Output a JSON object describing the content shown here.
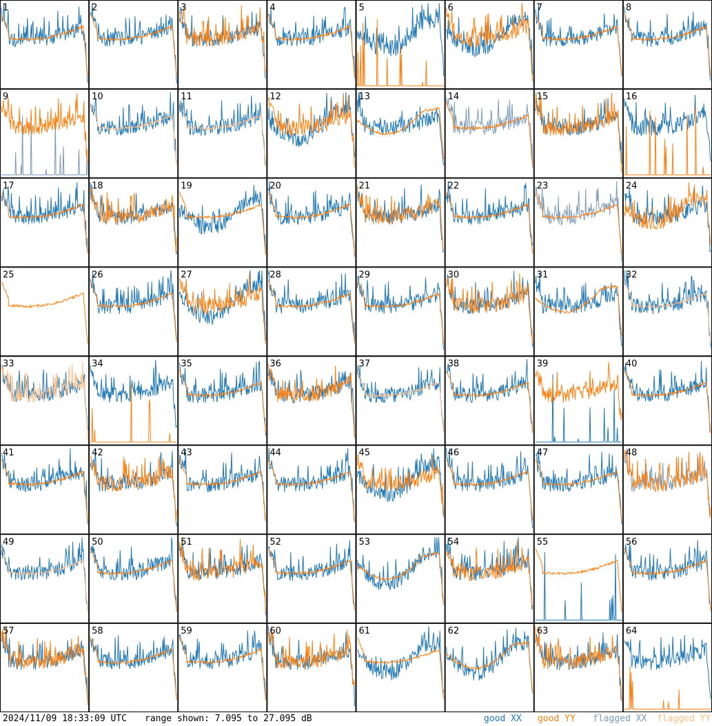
{
  "chart_data": {
    "type": "line",
    "panel_count": 64,
    "panels": [
      "1",
      "2",
      "3",
      "4",
      "5",
      "6",
      "7",
      "8",
      "9",
      "10",
      "11",
      "12",
      "13",
      "14",
      "15",
      "16",
      "17",
      "18",
      "19",
      "20",
      "21",
      "22",
      "23",
      "24",
      "25",
      "26",
      "27",
      "28",
      "29",
      "30",
      "31",
      "32",
      "33",
      "34",
      "35",
      "36",
      "37",
      "38",
      "39",
      "40",
      "41",
      "42",
      "43",
      "44",
      "45",
      "46",
      "47",
      "48",
      "49",
      "50",
      "51",
      "52",
      "53",
      "54",
      "55",
      "56",
      "57",
      "58",
      "59",
      "60",
      "61",
      "62",
      "63",
      "64"
    ],
    "series": [
      {
        "name": "good XX",
        "color": "#1f77b4"
      },
      {
        "name": "good YY",
        "color": "#ff7f0e"
      },
      {
        "name": "flagged XX",
        "color": "#7a9ab8"
      },
      {
        "name": "flagged YY",
        "color": "#ffbf8a"
      }
    ],
    "ylim": [
      7.095,
      27.095
    ],
    "y_unit": "dB",
    "flags": {
      "xx_flagged": [
        9,
        14,
        23,
        48
      ],
      "yy_flagged": [
        10,
        11,
        32,
        33,
        37,
        49
      ],
      "xx_spiky_low": [
        9,
        39,
        55
      ],
      "yy_spiky_low": [
        5,
        16,
        34,
        64
      ],
      "yy_missing": [
        16,
        64
      ],
      "xx_missing": [
        25
      ],
      "deep_dip": [
        5,
        6,
        12,
        19,
        27,
        45,
        53,
        61,
        62
      ],
      "yy_deep_dip": [
        31,
        53,
        62,
        24,
        13
      ]
    },
    "grid": false,
    "legend_position": "bottom-right"
  },
  "footer": {
    "timestamp": "2024/11/09 18:33:09 UTC",
    "range": "range shown: 7.095 to 27.095 dB",
    "legend": [
      "good XX",
      "good YY",
      "flagged XX",
      "flagged YY"
    ]
  },
  "colors": {
    "good_xx": "#1f77b4",
    "good_yy": "#ff7f0e",
    "flagged_xx": "#7a9ab8",
    "flagged_yy": "#ffbf8a"
  }
}
